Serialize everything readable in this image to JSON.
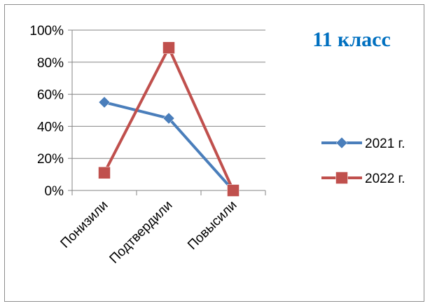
{
  "chart_data": {
    "type": "line",
    "title": "11 класс",
    "categories": [
      "Понизили",
      "Подтвердили",
      "Повысили"
    ],
    "y_ticks": [
      "0%",
      "20%",
      "40%",
      "60%",
      "80%",
      "100%"
    ],
    "ylim": [
      0,
      100
    ],
    "grid": true,
    "legend_position": "right",
    "series": [
      {
        "name": "2021 г.",
        "values": [
          55,
          45,
          0
        ],
        "color": "#4a7ebb",
        "marker": "diamond"
      },
      {
        "name": "2022 г.",
        "values": [
          11,
          89,
          0
        ],
        "color": "#c0504d",
        "marker": "square"
      }
    ]
  }
}
